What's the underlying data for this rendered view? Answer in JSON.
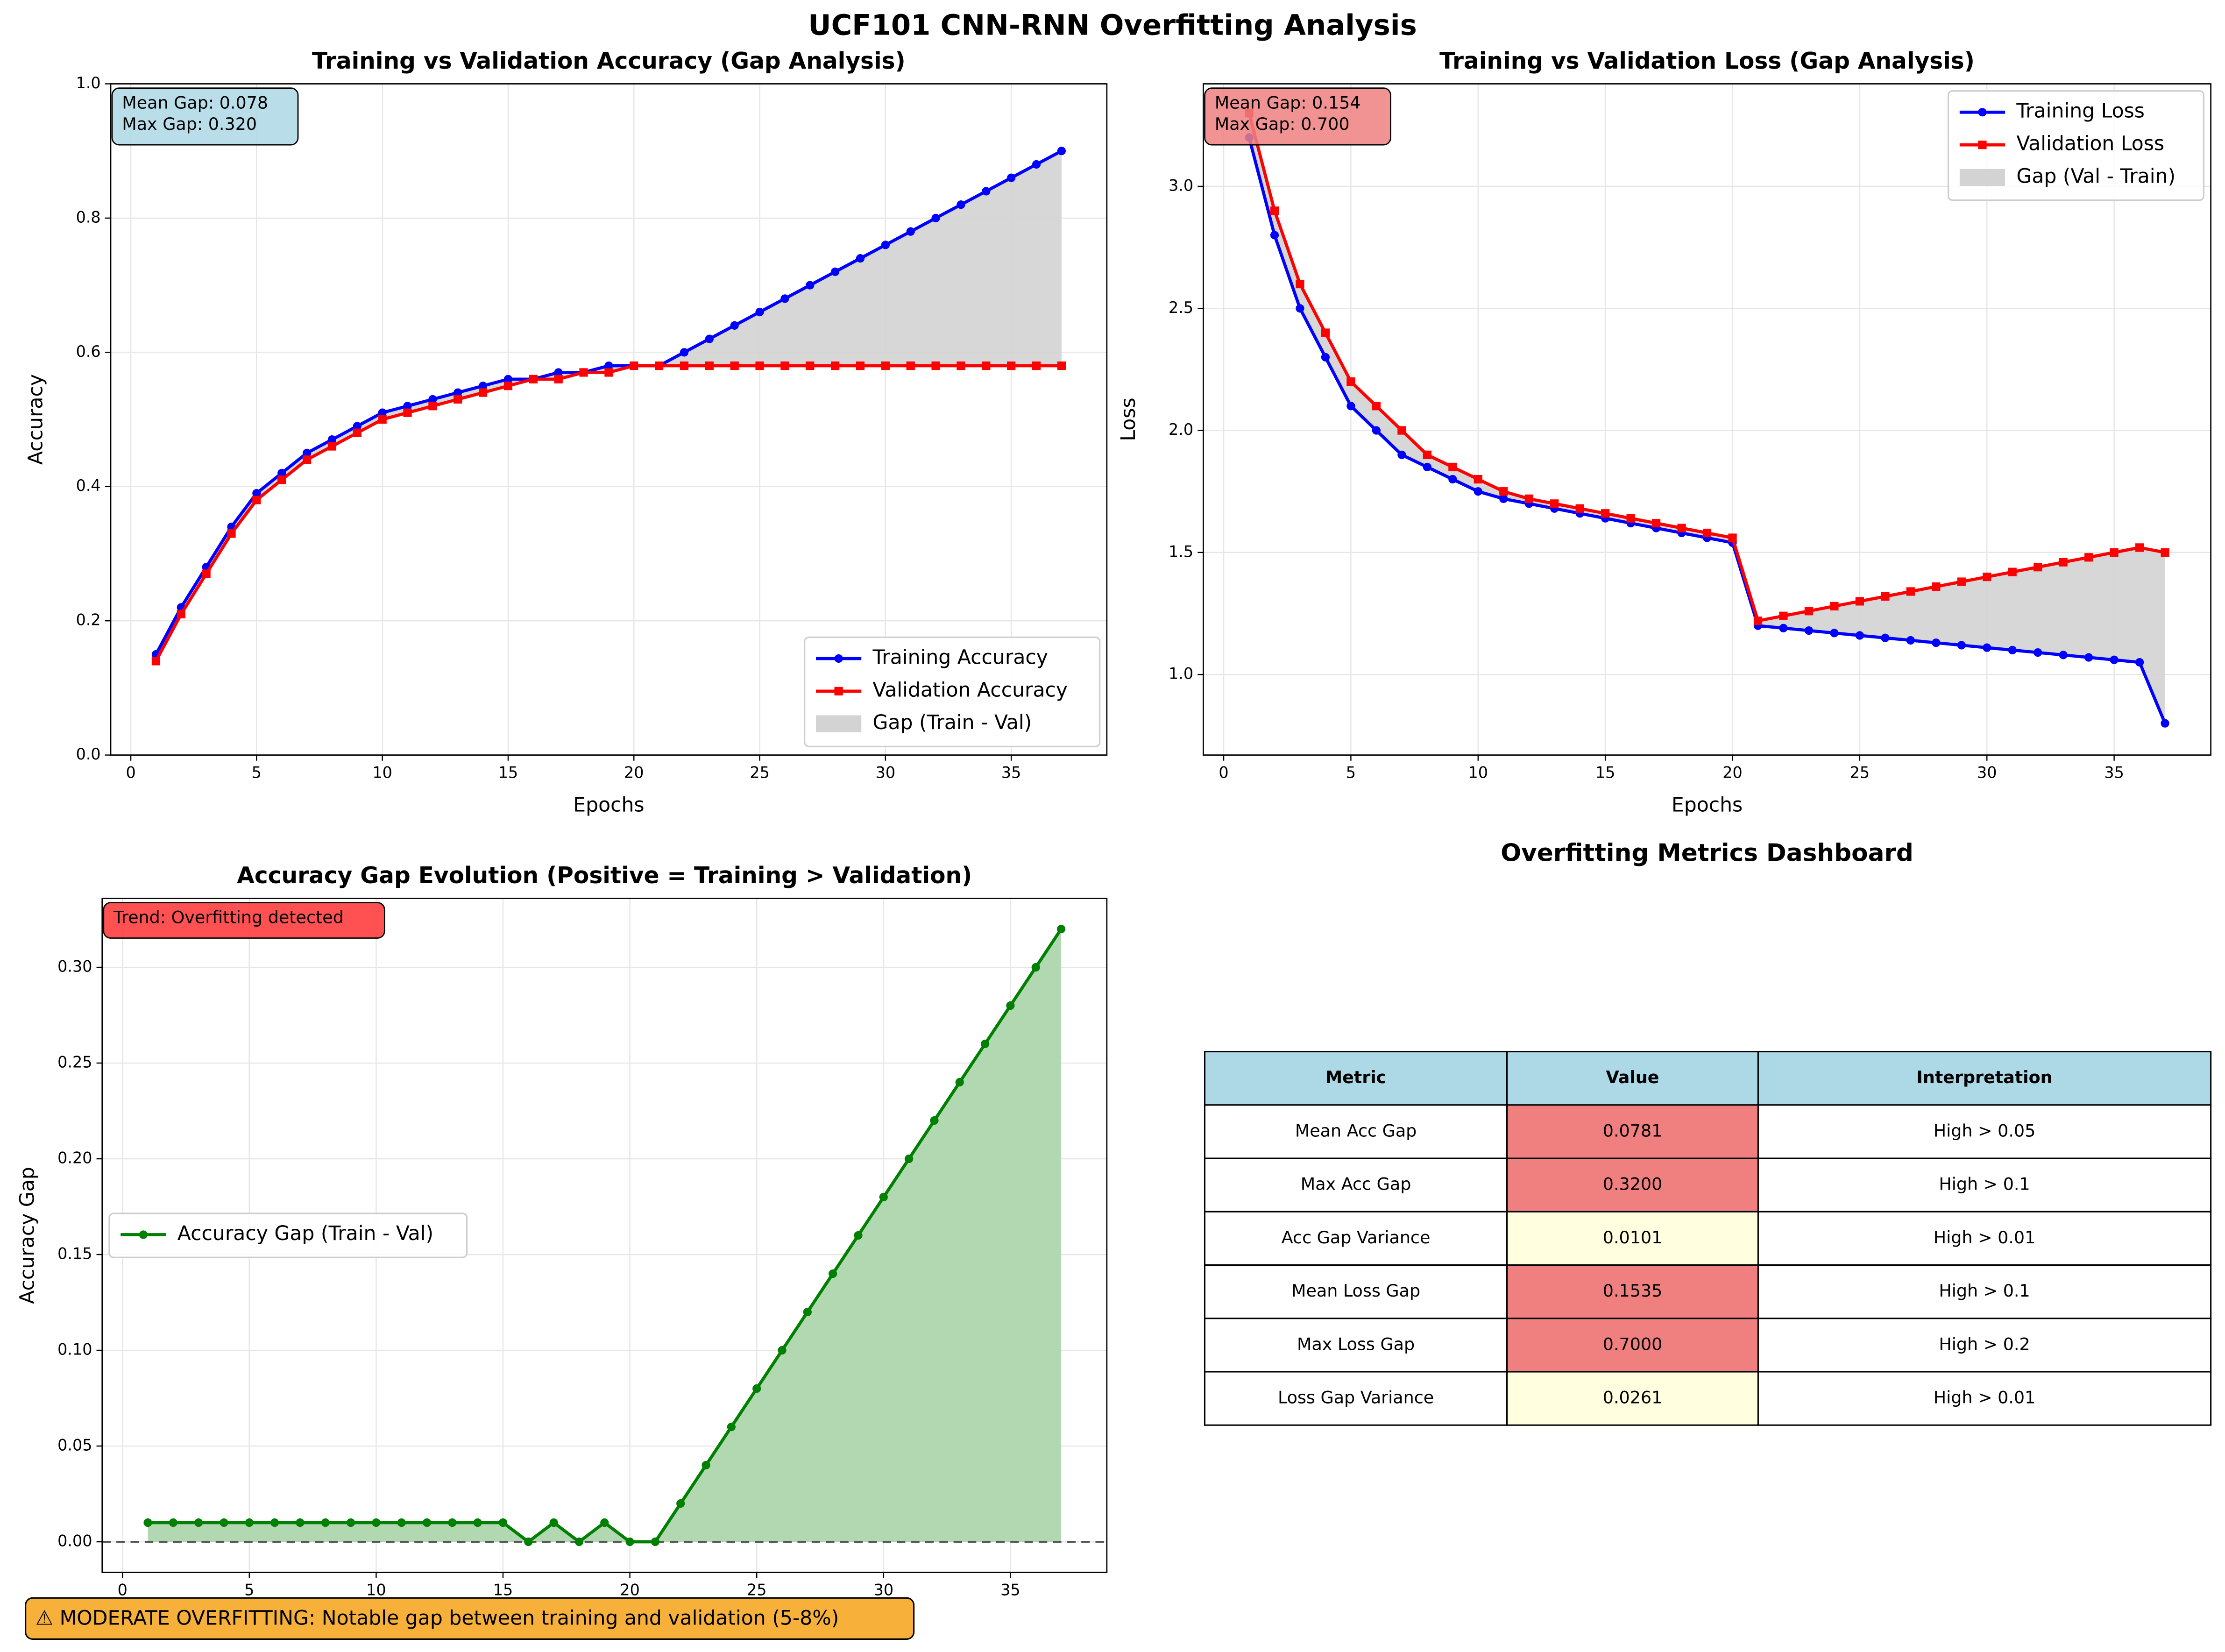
{
  "title": "UCF101 CNN-RNN Overfitting Analysis",
  "chart_data": [
    {
      "type": "line",
      "title": "Training vs Validation Accuracy (Gap Analysis)",
      "xlabel": "Epochs",
      "ylabel": "Accuracy",
      "x": [
        1,
        2,
        3,
        4,
        5,
        6,
        7,
        8,
        9,
        10,
        11,
        12,
        13,
        14,
        15,
        16,
        17,
        18,
        19,
        20,
        21,
        22,
        23,
        24,
        25,
        26,
        27,
        28,
        29,
        30,
        31,
        32,
        33,
        34,
        35,
        36,
        37
      ],
      "series": [
        {
          "name": "Training Accuracy",
          "color": "#0000ff",
          "marker": "circle",
          "values": [
            0.15,
            0.22,
            0.28,
            0.34,
            0.39,
            0.42,
            0.45,
            0.47,
            0.49,
            0.51,
            0.52,
            0.53,
            0.54,
            0.55,
            0.56,
            0.56,
            0.57,
            0.57,
            0.58,
            0.58,
            0.58,
            0.6,
            0.62,
            0.64,
            0.66,
            0.68,
            0.7,
            0.72,
            0.74,
            0.76,
            0.78,
            0.8,
            0.82,
            0.84,
            0.86,
            0.88,
            0.9
          ]
        },
        {
          "name": "Validation Accuracy",
          "color": "#ff0000",
          "marker": "square",
          "values": [
            0.14,
            0.21,
            0.27,
            0.33,
            0.38,
            0.41,
            0.44,
            0.46,
            0.48,
            0.5,
            0.51,
            0.52,
            0.53,
            0.54,
            0.55,
            0.56,
            0.56,
            0.57,
            0.57,
            0.58,
            0.58,
            0.58,
            0.58,
            0.58,
            0.58,
            0.58,
            0.58,
            0.58,
            0.58,
            0.58,
            0.58,
            0.58,
            0.58,
            0.58,
            0.58,
            0.58,
            0.58
          ]
        }
      ],
      "fill_between": {
        "name": "Gap (Train - Val)",
        "color": "#d3d3d3"
      },
      "annotation": {
        "lines": [
          "Mean Gap: 0.078",
          "Max Gap: 0.320"
        ],
        "color": "#add8e6"
      },
      "xlim": [
        -0.8,
        38.8
      ],
      "xticks": [
        0,
        5,
        10,
        15,
        20,
        25,
        30,
        35
      ],
      "ylim": [
        0,
        1
      ],
      "yticks": [
        {
          "value": 0,
          "label": "0.0"
        },
        0.2,
        0.4,
        0.6,
        0.8,
        {
          "value": 1,
          "label": "1.0"
        }
      ],
      "grid": true,
      "legend": "lower right"
    },
    {
      "type": "line",
      "title": "Training vs Validation Loss (Gap Analysis)",
      "xlabel": "Epochs",
      "ylabel": "Loss",
      "x": [
        1,
        2,
        3,
        4,
        5,
        6,
        7,
        8,
        9,
        10,
        11,
        12,
        13,
        14,
        15,
        16,
        17,
        18,
        19,
        20,
        21,
        22,
        23,
        24,
        25,
        26,
        27,
        28,
        29,
        30,
        31,
        32,
        33,
        34,
        35,
        36,
        37
      ],
      "series": [
        {
          "name": "Training Loss",
          "color": "#0000ff",
          "marker": "circle",
          "values": [
            3.2,
            2.8,
            2.5,
            2.3,
            2.1,
            2.0,
            1.9,
            1.85,
            1.8,
            1.75,
            1.72,
            1.7,
            1.68,
            1.66,
            1.64,
            1.62,
            1.6,
            1.58,
            1.56,
            1.54,
            1.2,
            1.19,
            1.18,
            1.17,
            1.16,
            1.15,
            1.14,
            1.13,
            1.12,
            1.11,
            1.1,
            1.09,
            1.08,
            1.07,
            1.06,
            1.05,
            0.8
          ]
        },
        {
          "name": "Validation Loss",
          "color": "#ff0000",
          "marker": "square",
          "values": [
            3.3,
            2.9,
            2.6,
            2.4,
            2.2,
            2.1,
            2.0,
            1.9,
            1.85,
            1.8,
            1.75,
            1.72,
            1.7,
            1.68,
            1.66,
            1.64,
            1.62,
            1.6,
            1.58,
            1.56,
            1.22,
            1.24,
            1.26,
            1.28,
            1.3,
            1.32,
            1.34,
            1.36,
            1.38,
            1.4,
            1.42,
            1.44,
            1.46,
            1.48,
            1.5,
            1.52,
            1.5
          ]
        }
      ],
      "fill_between": {
        "name": "Gap (Val - Train)",
        "color": "#d3d3d3"
      },
      "annotation": {
        "lines": [
          "Mean Gap: 0.154",
          "Max Gap: 0.700"
        ],
        "color": "#f08080"
      },
      "xlim": [
        -0.8,
        38.8
      ],
      "xticks": [
        0,
        5,
        10,
        15,
        20,
        25,
        30,
        35
      ],
      "ylim": [
        0.67,
        3.42
      ],
      "yticks": [
        {
          "value": 1,
          "label": "1.0"
        },
        1.5,
        {
          "value": 2,
          "label": "2.0"
        },
        2.5,
        {
          "value": 3,
          "label": "3.0"
        }
      ],
      "grid": true,
      "legend": "upper right"
    },
    {
      "type": "area",
      "title": "Accuracy Gap Evolution (Positive = Training > Validation)",
      "xlabel": "Epochs",
      "ylabel": "Accuracy Gap",
      "x": [
        1,
        2,
        3,
        4,
        5,
        6,
        7,
        8,
        9,
        10,
        11,
        12,
        13,
        14,
        15,
        16,
        17,
        18,
        19,
        20,
        21,
        22,
        23,
        24,
        25,
        26,
        27,
        28,
        29,
        30,
        31,
        32,
        33,
        34,
        35,
        36,
        37
      ],
      "series": [
        {
          "name": "Accuracy Gap (Train - Val)",
          "color": "#008000",
          "marker": "circle",
          "values": [
            0.01,
            0.01,
            0.01,
            0.01,
            0.01,
            0.01,
            0.01,
            0.01,
            0.01,
            0.01,
            0.01,
            0.01,
            0.01,
            0.01,
            0.01,
            0,
            0.01,
            0,
            0.01,
            0,
            0,
            0.02,
            0.04,
            0.06,
            0.08,
            0.1,
            0.12,
            0.14,
            0.16,
            0.18,
            0.2,
            0.22,
            0.24,
            0.26,
            0.28,
            0.3,
            0.32
          ]
        }
      ],
      "fill_color": "#b2d8b2",
      "annotation": {
        "lines": [
          "Trend: Overfitting detected"
        ],
        "color": "#ff3333"
      },
      "xlim": [
        -0.8,
        38.8
      ],
      "xticks": [
        0,
        5,
        10,
        15,
        20,
        25,
        30,
        35
      ],
      "ylim": [
        -0.016,
        0.336
      ],
      "yticks": [
        {
          "value": 0,
          "label": "0.00"
        },
        0.05,
        {
          "value": 0.1,
          "label": "0.10"
        },
        0.15,
        {
          "value": 0.2,
          "label": "0.20"
        },
        0.25,
        {
          "value": 0.3,
          "label": "0.30"
        }
      ],
      "grid": true,
      "zero_line": true,
      "legend": "center left"
    }
  ],
  "dashboard": {
    "title": "Overfitting Metrics Dashboard",
    "columns": [
      "Metric",
      "Value",
      "Interpretation"
    ],
    "header_color": "#add8e6",
    "rows": [
      [
        "Mean Acc Gap",
        "0.0781",
        "High > 0.05"
      ],
      [
        "Max Acc Gap",
        "0.3200",
        "High > 0.1"
      ],
      [
        "Acc Gap Variance",
        "0.0101",
        "High > 0.01"
      ],
      [
        "Mean Loss Gap",
        "0.1535",
        "High > 0.1"
      ],
      [
        "Max Loss Gap",
        "0.7000",
        "High > 0.2"
      ],
      [
        "Loss Gap Variance",
        "0.0261",
        "High > 0.01"
      ]
    ],
    "value_colors": [
      "#f08080",
      "#f08080",
      "#ffffe0",
      "#f08080",
      "#f08080",
      "#ffffe0"
    ]
  },
  "warning": {
    "text": "⚠ MODERATE OVERFITTING: Notable gap between training and validation (5-8%)",
    "color": "#f7b13a"
  }
}
